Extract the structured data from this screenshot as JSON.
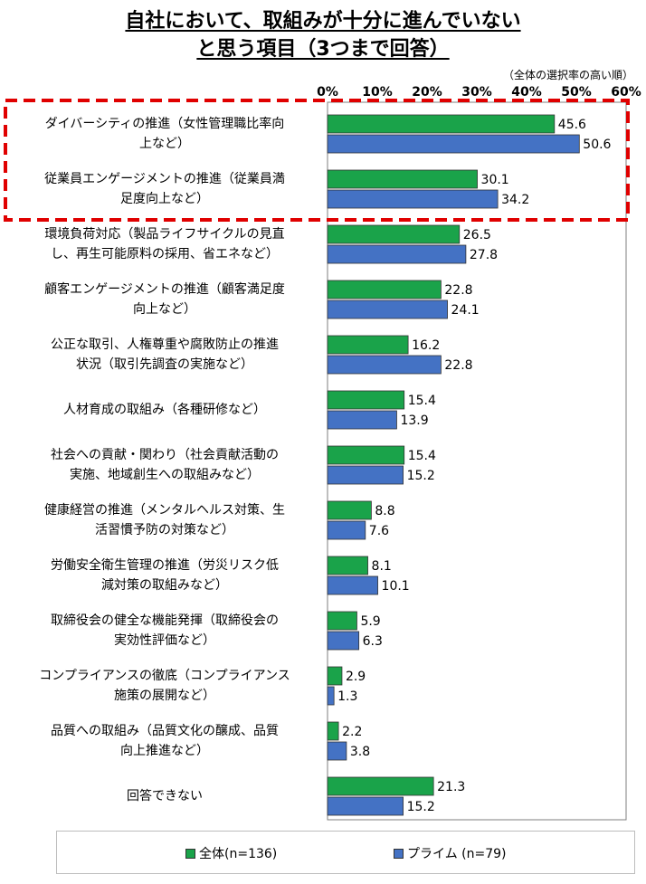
{
  "chart_data": {
    "type": "bar",
    "orientation": "horizontal",
    "title_lines": [
      "自社において、取組みが十分に進んでいない",
      "と思う項目（3つまで回答）"
    ],
    "sort_note": "（全体の選択率の高い順）",
    "x_ticks": [
      "0%",
      "10%",
      "20%",
      "30%",
      "40%",
      "50%",
      "60%"
    ],
    "xlim": [
      0,
      60
    ],
    "categories": [
      [
        "ダイバーシティの推進（女性管理職比率向",
        "上など）"
      ],
      [
        "従業員エンゲージメントの推進（従業員満",
        "足度向上など）"
      ],
      [
        "環境負荷対応（製品ライフサイクルの見直",
        "し、再生可能原料の採用、省エネなど）"
      ],
      [
        "顧客エンゲージメントの推進（顧客満足度",
        "向上など）"
      ],
      [
        "公正な取引、人権尊重や腐敗防止の推進",
        "状況（取引先調査の実施など）"
      ],
      [
        "人材育成の取組み（各種研修など）"
      ],
      [
        "社会への貢献・関わり（社会貢献活動の",
        "実施、地域創生への取組みなど）"
      ],
      [
        "健康経営の推進（メンタルヘルス対策、生",
        "活習慣予防の対策など）"
      ],
      [
        "労働安全衛生管理の推進（労災リスク低",
        "減対策の取組みなど）"
      ],
      [
        "取締役会の健全な機能発揮（取締役会の",
        "実効性評価など）"
      ],
      [
        "コンプライアンスの徹底（コンプライアンス",
        "施策の展開など）"
      ],
      [
        "品質への取組み（品質文化の醸成、品質",
        "向上推進など）"
      ],
      [
        "回答できない"
      ]
    ],
    "series": [
      {
        "name": "全体(n=136)",
        "color": "#1aa34a",
        "values": [
          45.6,
          30.1,
          26.5,
          22.8,
          16.2,
          15.4,
          15.4,
          8.8,
          8.1,
          5.9,
          2.9,
          2.2,
          21.3
        ],
        "labels": [
          "45.6",
          "30.1",
          "26.5",
          "22.8",
          "16.2",
          "15.4",
          "15.4",
          "8.8",
          "8.1",
          "5.9",
          "2.9",
          "2.2",
          "21.3"
        ]
      },
      {
        "name": "プライム (n=79)",
        "color": "#4472c4",
        "values": [
          50.6,
          34.2,
          27.8,
          24.1,
          22.8,
          13.9,
          15.2,
          7.6,
          10.1,
          6.3,
          1.3,
          3.8,
          15.2
        ],
        "labels": [
          "50.6",
          "34.2",
          "27.8",
          "24.1",
          "22.8",
          "13.9",
          "15.2",
          "7.6",
          "10.1",
          "6.3",
          "1.3",
          "3.8",
          "15.2"
        ]
      }
    ],
    "highlight": {
      "from_index": 0,
      "to_index": 1,
      "color": "#e00000"
    },
    "grid": false,
    "legend": "bottom"
  }
}
